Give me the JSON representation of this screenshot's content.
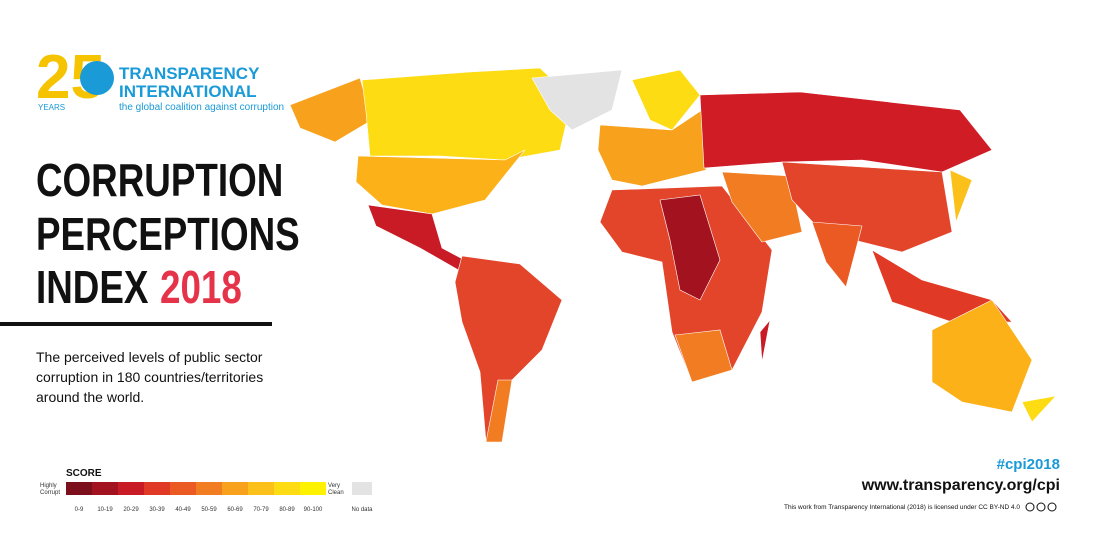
{
  "logo": {
    "number": "25",
    "years": "YEARS",
    "org_line1": "TRANSPARENCY",
    "org_line2": "INTERNATIONAL",
    "tagline": "the global coalition against corruption"
  },
  "title": {
    "line1": "CORRUPTION",
    "line2": "PERCEPTIONS",
    "line3": "INDEX",
    "year": "2018"
  },
  "description": {
    "line1": "The perceived levels of public sector",
    "line2": "corruption in 180 countries/territories",
    "line3": "around the world."
  },
  "legend": {
    "title": "SCORE",
    "low_label_1": "Highly",
    "low_label_2": "Corrupt",
    "high_label_1": "Very",
    "high_label_2": "Clean",
    "bins": [
      {
        "label": "0-9",
        "color": "#7b0f1c"
      },
      {
        "label": "10-19",
        "color": "#a3121f"
      },
      {
        "label": "20-29",
        "color": "#c81b25"
      },
      {
        "label": "30-39",
        "color": "#e03a26"
      },
      {
        "label": "40-49",
        "color": "#ec5a24"
      },
      {
        "label": "50-59",
        "color": "#f27c21"
      },
      {
        "label": "60-69",
        "color": "#f7a11d"
      },
      {
        "label": "70-79",
        "color": "#fbc11a"
      },
      {
        "label": "80-89",
        "color": "#fddc14"
      },
      {
        "label": "90-100",
        "color": "#fff200"
      }
    ],
    "no_data": {
      "label": "No data",
      "color": "#e3e3e3"
    }
  },
  "footer": {
    "hashtag": "#cpi2018",
    "url": "www.transparency.org/cpi",
    "license": "This work from Transparency International (2018) is licensed under CC BY-ND 4.0"
  }
}
